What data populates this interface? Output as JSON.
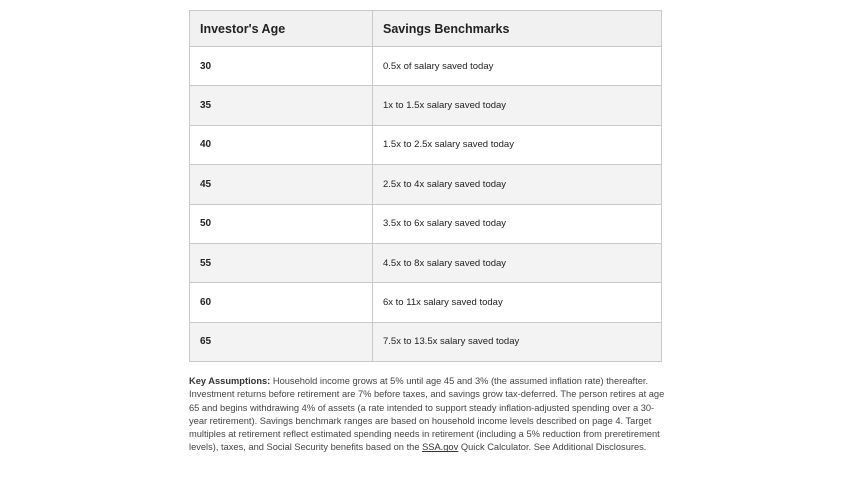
{
  "table": {
    "headers": [
      "Investor's Age",
      "Savings Benchmarks"
    ],
    "rows": [
      {
        "age": "30",
        "benchmark": "0.5x of salary saved today"
      },
      {
        "age": "35",
        "benchmark": "1x to 1.5x salary saved today"
      },
      {
        "age": "40",
        "benchmark": "1.5x to 2.5x salary saved today"
      },
      {
        "age": "45",
        "benchmark": "2.5x to 4x salary saved today"
      },
      {
        "age": "50",
        "benchmark": "3.5x to 6x salary saved today"
      },
      {
        "age": "55",
        "benchmark": "4.5x to 8x salary saved today"
      },
      {
        "age": "60",
        "benchmark": "6x to 11x salary saved today"
      },
      {
        "age": "65",
        "benchmark": "7.5x to 13.5x salary saved today"
      }
    ]
  },
  "assumptions": {
    "lead": "Key Assumptions:",
    "body": " Household income grows at 5% until age 45 and 3% (the assumed inflation rate) thereafter. Investment returns before retirement are 7% before taxes, and savings grow tax-deferred. The person retires at age 65 and begins withdrawing 4% of assets (a rate intended to support steady inflation-adjusted spending over a 30-year retirement). Savings benchmark ranges are based on household income levels described on page 4. Target multiples at retirement reflect estimated spending needs in retirement (including a 5% reduction from preretirement levels), taxes, and Social Security benefits based on the ",
    "link": "SSA.gov",
    "tail": " Quick Calculator. See Additional Disclosures."
  }
}
